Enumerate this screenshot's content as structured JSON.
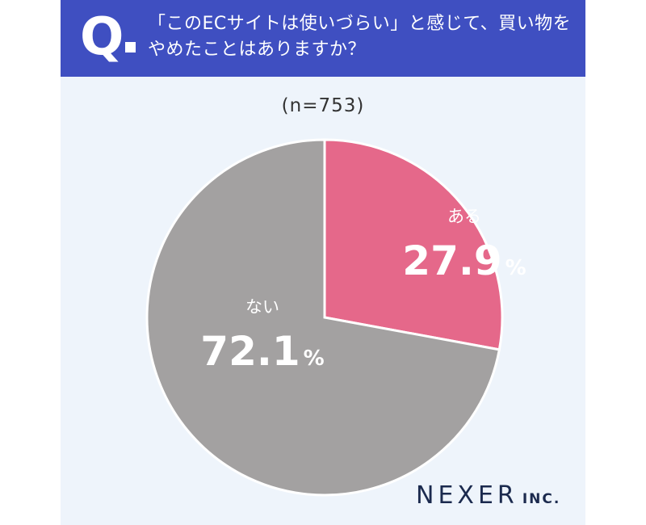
{
  "header": {
    "q_mark": "Q",
    "question_line1": "「このECサイトは使いづらい」と感じて、買い物を",
    "question_line2": "やめたことはありますか？"
  },
  "sample_size": "(n=753)",
  "logo": {
    "name": "NEXER",
    "suffix": "INC."
  },
  "colors": {
    "header_bg": "#3f4fc1",
    "background": "#eef4fb",
    "aru": "#e5688a",
    "nai": "#a3a1a1"
  },
  "chart_data": {
    "type": "pie",
    "title": "「このECサイトは使いづらい」と感じて、買い物をやめたことはありますか？",
    "n": 753,
    "unit": "%",
    "start": "12 o'clock",
    "direction": "clockwise",
    "slices": [
      {
        "label": "ある",
        "value": 27.9,
        "value_text": "27.9",
        "color": "#e5688a"
      },
      {
        "label": "ない",
        "value": 72.1,
        "value_text": "72.1",
        "color": "#a3a1a1"
      }
    ]
  }
}
